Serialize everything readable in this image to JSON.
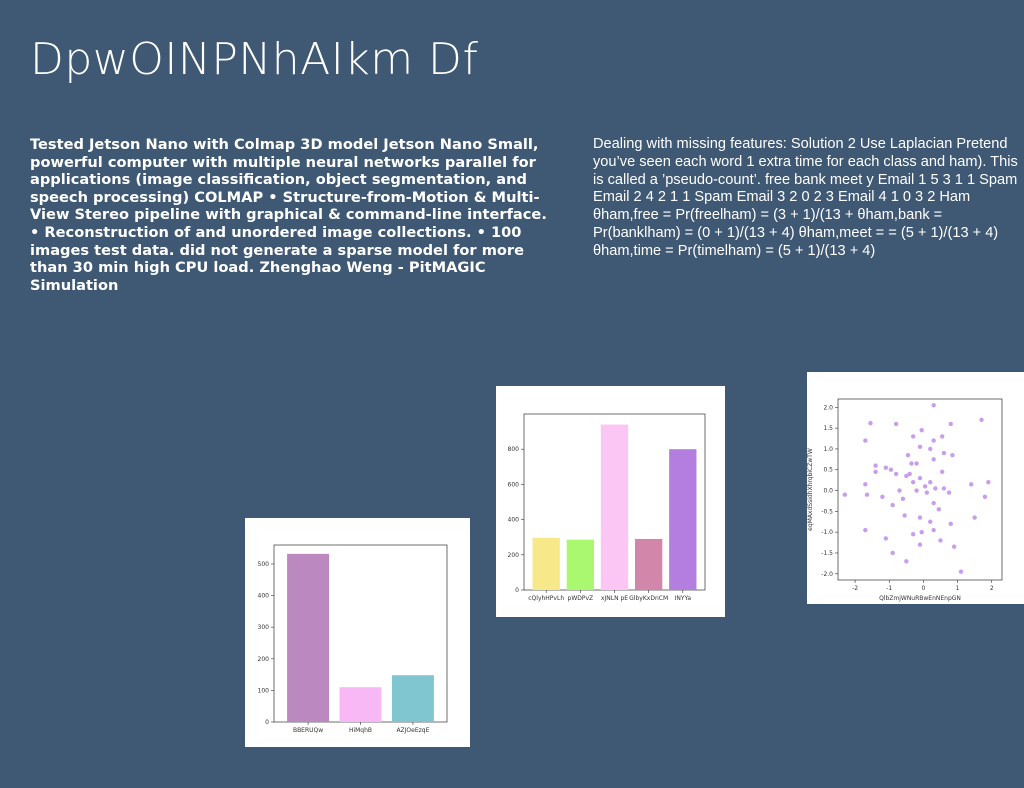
{
  "slide": {
    "title": "DpwOINPNhAIkm Df",
    "left_text": "Tested Jetson Nano with Colmap 3D model Jetson Nano Small, powerful computer with multiple neural networks parallel for applications (image classification, object segmentation, and speech processing) COLMAP • Structure-from-Motion & Multi-View Stereo pipeline with graphical & command-line interface. • Reconstruction of and unordered image collections. • 100 images test data. did not generate a sparse model for more than 30 min high CPU load. Zhenghao Weng - PitMAGIC Simulation",
    "right_text": "Dealing with missing features: Solution 2 Use Laplacian Pretend you’ve seen each word 1 extra time for each class and ham). This is called a ’pseudo-count’. free bank meet y Email 1 5 3 1 1 Spam Email 2 4 2 1 1 Spam Email 3 2 0 2 3 Email 4 1 0 3 2 Ham θham,free = Pr(freelham) = (3 + 1)/(13 + θham,bank = Pr(banklham) = (0 + 1)/(13 + 4) θham,meet = = (5 + 1)/(13 + 4) θham,time = Pr(timelham) = (5 + 1)/(13 + 4)"
  },
  "chart_data": [
    {
      "type": "bar",
      "categories": [
        "BBERUQw",
        "HiMqhB",
        "AZJOeEzqE"
      ],
      "values": [
        532,
        110,
        148
      ],
      "colors": [
        "#bb88bf",
        "#f7b8f5",
        "#7fc6d1"
      ],
      "ylim": [
        0,
        560
      ],
      "yticks": [
        0,
        100,
        200,
        300,
        400,
        500
      ],
      "title": "",
      "xlabel": "",
      "ylabel": ""
    },
    {
      "type": "bar",
      "categories": [
        "cQlyhHPvLh",
        "pWDPvZ",
        "xJNLN pE",
        "GlbyKxDnCM",
        "INYYa"
      ],
      "values": [
        296,
        286,
        940,
        290,
        800
      ],
      "colors": [
        "#f7e889",
        "#a9f870",
        "#fcc6f4",
        "#d286aa",
        "#b37ee0"
      ],
      "ylim": [
        0,
        1000
      ],
      "yticks": [
        0,
        200,
        400,
        600,
        800
      ],
      "title": "",
      "xlabel": "",
      "ylabel": ""
    },
    {
      "type": "scatter",
      "xlabel": "QlbZmjWNuRBwEnNEnpGN",
      "ylabel": "eqMAxdSsidhXhrqbiCZwTW",
      "xlim": [
        -2.5,
        2.3
      ],
      "ylim": [
        -2.15,
        2.2
      ],
      "xticks": [
        -2,
        -1,
        0,
        1,
        2
      ],
      "yticks": [
        -2.0,
        -1.5,
        -1.0,
        -0.5,
        0.0,
        0.5,
        1.0,
        1.5,
        2.0
      ],
      "color": "#b57ee5",
      "points": [
        [
          0.3,
          2.05
        ],
        [
          1.7,
          1.7
        ],
        [
          -0.8,
          1.6
        ],
        [
          -1.55,
          1.62
        ],
        [
          0.8,
          1.6
        ],
        [
          -0.05,
          1.45
        ],
        [
          -0.3,
          1.3
        ],
        [
          0.55,
          1.3
        ],
        [
          -1.7,
          1.2
        ],
        [
          0.3,
          1.2
        ],
        [
          -0.1,
          1.05
        ],
        [
          0.2,
          1.0
        ],
        [
          0.6,
          0.9
        ],
        [
          0.85,
          0.85
        ],
        [
          -0.45,
          0.85
        ],
        [
          0.3,
          0.75
        ],
        [
          -0.35,
          0.65
        ],
        [
          -0.2,
          0.65
        ],
        [
          -1.4,
          0.6
        ],
        [
          -1.1,
          0.55
        ],
        [
          -1.4,
          0.45
        ],
        [
          -0.95,
          0.5
        ],
        [
          0.55,
          0.45
        ],
        [
          -0.8,
          0.4
        ],
        [
          -0.4,
          0.4
        ],
        [
          -0.5,
          0.35
        ],
        [
          -0.1,
          0.3
        ],
        [
          0.2,
          0.2
        ],
        [
          -0.3,
          0.2
        ],
        [
          1.9,
          0.2
        ],
        [
          1.4,
          0.15
        ],
        [
          -1.7,
          0.15
        ],
        [
          0.05,
          0.1
        ],
        [
          0.35,
          0.05
        ],
        [
          0.6,
          0.05
        ],
        [
          -0.7,
          0.0
        ],
        [
          -0.2,
          0.0
        ],
        [
          0.1,
          -0.05
        ],
        [
          0.75,
          -0.05
        ],
        [
          -2.3,
          -0.1
        ],
        [
          -1.65,
          -0.1
        ],
        [
          -1.2,
          -0.15
        ],
        [
          1.8,
          -0.15
        ],
        [
          -0.6,
          -0.2
        ],
        [
          0.3,
          -0.3
        ],
        [
          -0.9,
          -0.35
        ],
        [
          0.45,
          -0.45
        ],
        [
          -0.55,
          -0.6
        ],
        [
          -0.1,
          -0.65
        ],
        [
          1.5,
          -0.65
        ],
        [
          0.2,
          -0.75
        ],
        [
          0.8,
          -0.8
        ],
        [
          -1.7,
          -0.95
        ],
        [
          0.3,
          -0.95
        ],
        [
          -0.05,
          -1.0
        ],
        [
          -0.3,
          -1.05
        ],
        [
          -1.1,
          -1.15
        ],
        [
          0.5,
          -1.2
        ],
        [
          -0.1,
          -1.3
        ],
        [
          0.9,
          -1.35
        ],
        [
          -0.9,
          -1.5
        ],
        [
          -0.5,
          -1.7
        ],
        [
          1.1,
          -1.95
        ]
      ],
      "title": ""
    }
  ]
}
